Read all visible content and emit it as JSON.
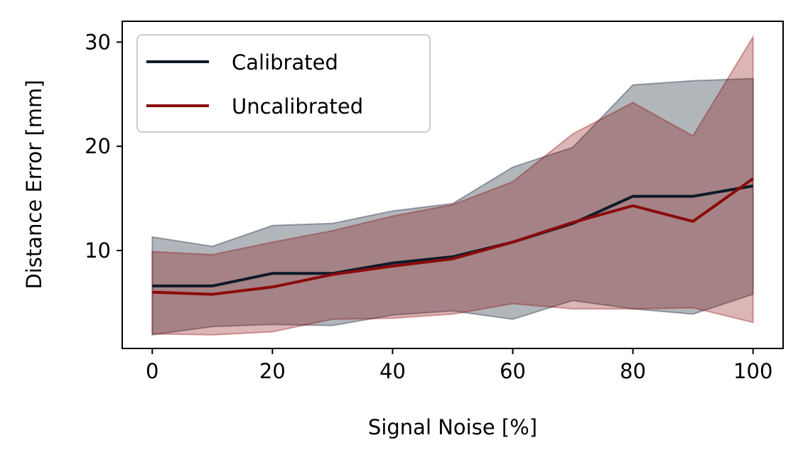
{
  "chart_data": {
    "type": "line",
    "title": "",
    "xlabel": "Signal Noise [%]",
    "ylabel": "Distance Error [mm]",
    "xlim": [
      -5,
      105
    ],
    "ylim": [
      0.6,
      32
    ],
    "x": [
      0,
      10,
      20,
      30,
      40,
      50,
      60,
      70,
      80,
      90,
      100
    ],
    "xticks": [
      0,
      20,
      40,
      60,
      80,
      100
    ],
    "xtick_labels": [
      "0",
      "20",
      "40",
      "60",
      "80",
      "100"
    ],
    "yticks": [
      10,
      20,
      30
    ],
    "ytick_labels": [
      "10",
      "20",
      "30"
    ],
    "legend_position": "top-left",
    "series": [
      {
        "name": "Calibrated",
        "color": "#0d1b2a",
        "values": [
          6.6,
          6.6,
          7.8,
          7.8,
          8.8,
          9.4,
          10.8,
          12.6,
          15.2,
          15.2,
          16.2
        ],
        "band_upper": [
          11.3,
          10.4,
          12.4,
          12.6,
          13.8,
          14.5,
          18.0,
          19.9,
          25.9,
          26.3,
          26.5
        ],
        "band_lower": [
          1.9,
          2.7,
          2.9,
          2.8,
          3.8,
          4.2,
          3.4,
          5.2,
          4.4,
          3.9,
          5.8
        ]
      },
      {
        "name": "Uncalibrated",
        "color": "#8b0a0a",
        "values": [
          6.0,
          5.8,
          6.5,
          7.7,
          8.5,
          9.2,
          10.8,
          12.7,
          14.3,
          12.8,
          16.9
        ],
        "band_upper": [
          9.9,
          9.6,
          10.8,
          11.9,
          13.3,
          14.4,
          16.6,
          21.2,
          24.2,
          21.0,
          30.5
        ],
        "band_lower": [
          2.0,
          1.9,
          2.2,
          3.4,
          3.5,
          3.9,
          4.9,
          4.4,
          4.4,
          4.5,
          3.1
        ]
      }
    ]
  }
}
